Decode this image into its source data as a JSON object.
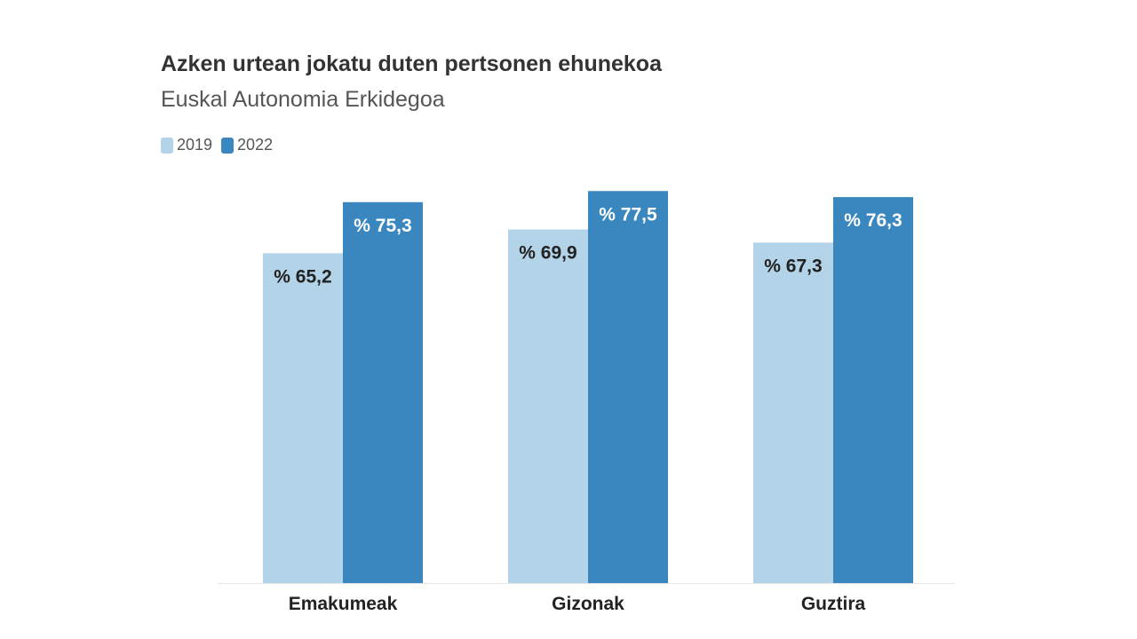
{
  "chart_data": {
    "type": "bar",
    "title": "Azken urtean jokatu duten pertsonen ehunekoa",
    "subtitle": "Euskal Autonomia Erkidegoa",
    "categories": [
      "Emakumeak",
      "Gizonak",
      "Guztira"
    ],
    "series": [
      {
        "name": "2019",
        "values": [
          65.2,
          69.9,
          67.3
        ],
        "labels": [
          "% 65,2",
          "% 69,9",
          "% 67,3"
        ],
        "color": "#b3d3e8",
        "label_color": "#222222"
      },
      {
        "name": "2022",
        "values": [
          75.3,
          77.5,
          76.3
        ],
        "labels": [
          "% 75,3",
          "% 77,5",
          "% 76,3"
        ],
        "color": "#3a87bf",
        "label_color": "#ffffff"
      }
    ],
    "ylim": [
      0,
      80
    ],
    "grid": false,
    "legend_position": "top-left"
  }
}
